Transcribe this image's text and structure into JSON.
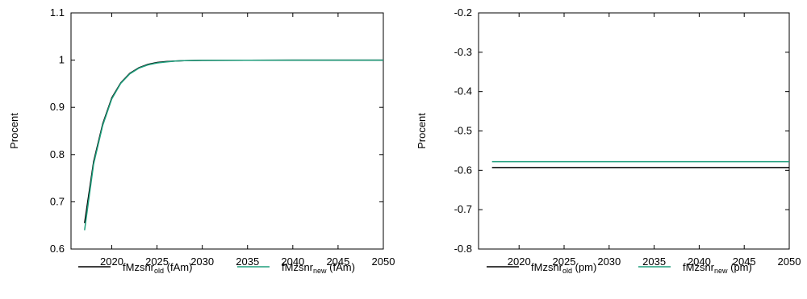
{
  "colors": {
    "old": "#000000",
    "new": "#1f9e7c",
    "frame": "#000000",
    "background": "#ffffff"
  },
  "chart_data": [
    {
      "type": "line",
      "ylabel": "Procent",
      "xlim": [
        2015.5,
        2050
      ],
      "ylim": [
        0.6,
        1.1
      ],
      "grid": false,
      "legend_position": "bottom",
      "xticks": [
        2020,
        2025,
        2030,
        2035,
        2040,
        2045,
        2050
      ],
      "xtick_labels": [
        "2020",
        "2025",
        "2030",
        "2035",
        "2040",
        "2045",
        "2050"
      ],
      "yticks": [
        0.6,
        0.7,
        0.8,
        0.9,
        1.0,
        1.1
      ],
      "ytick_labels": [
        "0.6",
        "0.7",
        "0.8",
        "0.9",
        "1",
        "1.1"
      ],
      "series": [
        {
          "name": "fMzsnr",
          "subscript": "old",
          "suffix": " (fAm)",
          "color_key": "old",
          "x": [
            2017,
            2018,
            2019,
            2020,
            2021,
            2022,
            2023,
            2024,
            2025,
            2026,
            2027,
            2028,
            2030,
            2035,
            2040,
            2045,
            2050
          ],
          "y": [
            0.655,
            0.785,
            0.865,
            0.92,
            0.952,
            0.972,
            0.984,
            0.991,
            0.995,
            0.997,
            0.998,
            0.999,
            0.9995,
            0.9998,
            1.0,
            1.0,
            1.0
          ]
        },
        {
          "name": "fMzsnr",
          "subscript": "new",
          "suffix": " (fAm)",
          "color_key": "new",
          "x": [
            2017,
            2018,
            2019,
            2020,
            2021,
            2022,
            2023,
            2024,
            2025,
            2026,
            2027,
            2028,
            2030,
            2035,
            2040,
            2045,
            2050
          ],
          "y": [
            0.64,
            0.78,
            0.862,
            0.918,
            0.951,
            0.971,
            0.983,
            0.99,
            0.994,
            0.996,
            0.998,
            0.999,
            0.9995,
            0.9998,
            1.0,
            1.0,
            1.0
          ]
        }
      ]
    },
    {
      "type": "line",
      "ylabel": "Procent",
      "xlim": [
        2015.5,
        2050
      ],
      "ylim": [
        -0.8,
        -0.2
      ],
      "grid": false,
      "legend_position": "bottom",
      "xticks": [
        2020,
        2025,
        2030,
        2035,
        2040,
        2045,
        2050
      ],
      "xtick_labels": [
        "2020",
        "2025",
        "2030",
        "2035",
        "2040",
        "2045",
        "2050"
      ],
      "yticks": [
        -0.8,
        -0.7,
        -0.6,
        -0.5,
        -0.4,
        -0.3,
        -0.2
      ],
      "ytick_labels": [
        "-0.8",
        "-0.7",
        "-0.6",
        "-0.5",
        "-0.4",
        "-0.3",
        "-0.2"
      ],
      "series": [
        {
          "name": "fMzsnr",
          "subscript": "old",
          "suffix": " (pm)",
          "color_key": "old",
          "x": [
            2017,
            2050
          ],
          "y": [
            -0.593,
            -0.593
          ]
        },
        {
          "name": "fMzsnr",
          "subscript": "new",
          "suffix": " (pm)",
          "color_key": "new",
          "x": [
            2017,
            2050
          ],
          "y": [
            -0.578,
            -0.578
          ]
        }
      ]
    }
  ]
}
